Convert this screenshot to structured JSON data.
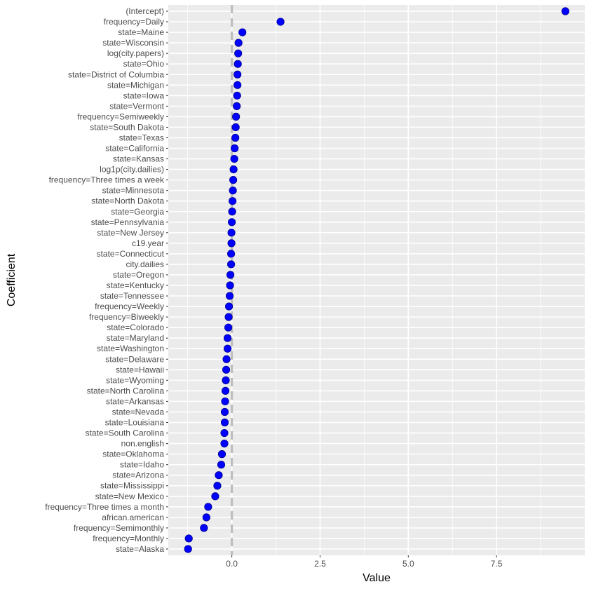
{
  "chart_data": {
    "type": "scatter",
    "title": "",
    "xlabel": "Value",
    "ylabel": "Coefficient",
    "xlim": [
      -1.8,
      10.0
    ],
    "x_ticks": [
      0,
      2.5,
      5,
      7.5
    ],
    "x_tick_labels": [
      "0.0",
      "2.5",
      "5.0",
      "7.5"
    ],
    "reference_line_x": 0,
    "grid": true,
    "point_color": "#0000ff",
    "panel_background": "#ebebeb",
    "reference_line_color": "#bdbdbd",
    "points": [
      {
        "label": "(Intercept)",
        "value": 9.45
      },
      {
        "label": "frequency=Daily",
        "value": 1.38
      },
      {
        "label": "state=Maine",
        "value": 0.3
      },
      {
        "label": "state=Wisconsin",
        "value": 0.19
      },
      {
        "label": "log(city.papers)",
        "value": 0.18
      },
      {
        "label": "state=Ohio",
        "value": 0.17
      },
      {
        "label": "state=District of Columbia",
        "value": 0.16
      },
      {
        "label": "state=Michigan",
        "value": 0.16
      },
      {
        "label": "state=Iowa",
        "value": 0.15
      },
      {
        "label": "state=Vermont",
        "value": 0.14
      },
      {
        "label": "frequency=Semiweekly",
        "value": 0.12
      },
      {
        "label": "state=South Dakota",
        "value": 0.11
      },
      {
        "label": "state=Texas",
        "value": 0.1
      },
      {
        "label": "state=California",
        "value": 0.08
      },
      {
        "label": "state=Kansas",
        "value": 0.07
      },
      {
        "label": "log1p(city.dailies)",
        "value": 0.05
      },
      {
        "label": "frequency=Three times a week",
        "value": 0.04
      },
      {
        "label": "state=Minnesota",
        "value": 0.03
      },
      {
        "label": "state=North Dakota",
        "value": 0.02
      },
      {
        "label": "state=Georgia",
        "value": 0.01
      },
      {
        "label": "state=Pennsylvania",
        "value": 0.0
      },
      {
        "label": "state=New Jersey",
        "value": -0.01
      },
      {
        "label": "c19.year",
        "value": -0.01
      },
      {
        "label": "state=Connecticut",
        "value": -0.02
      },
      {
        "label": "city.dailies",
        "value": -0.02
      },
      {
        "label": "state=Oregon",
        "value": -0.04
      },
      {
        "label": "state=Kentucky",
        "value": -0.05
      },
      {
        "label": "state=Tennessee",
        "value": -0.06
      },
      {
        "label": "frequency=Weekly",
        "value": -0.08
      },
      {
        "label": "frequency=Biweekly",
        "value": -0.09
      },
      {
        "label": "state=Colorado",
        "value": -0.1
      },
      {
        "label": "state=Maryland",
        "value": -0.12
      },
      {
        "label": "state=Washington",
        "value": -0.12
      },
      {
        "label": "state=Delaware",
        "value": -0.15
      },
      {
        "label": "state=Hawaii",
        "value": -0.16
      },
      {
        "label": "state=Wyoming",
        "value": -0.17
      },
      {
        "label": "state=North Carolina",
        "value": -0.18
      },
      {
        "label": "state=Arkansas",
        "value": -0.19
      },
      {
        "label": "state=Nevada",
        "value": -0.2
      },
      {
        "label": "state=Louisiana",
        "value": -0.2
      },
      {
        "label": "state=South Carolina",
        "value": -0.21
      },
      {
        "label": "non.english",
        "value": -0.21
      },
      {
        "label": "state=Oklahoma",
        "value": -0.28
      },
      {
        "label": "state=Idaho",
        "value": -0.3
      },
      {
        "label": "state=Arizona",
        "value": -0.37
      },
      {
        "label": "state=Mississippi",
        "value": -0.41
      },
      {
        "label": "state=New Mexico",
        "value": -0.47
      },
      {
        "label": "frequency=Three times a month",
        "value": -0.67
      },
      {
        "label": "african.american",
        "value": -0.72
      },
      {
        "label": "frequency=Semimonthly",
        "value": -0.79
      },
      {
        "label": "frequency=Monthly",
        "value": -1.22
      },
      {
        "label": "state=Alaska",
        "value": -1.24
      }
    ]
  }
}
